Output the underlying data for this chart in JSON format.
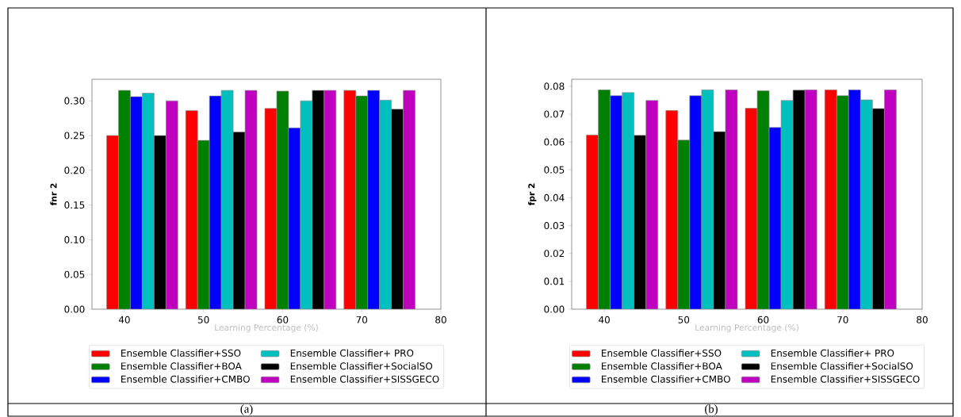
{
  "chart_data": [
    {
      "type": "bar",
      "xlabel": "Learning Percentage (%)",
      "ylabel": "fnr 2",
      "xlim": [
        35.9,
        80
      ],
      "xticks": [
        40,
        50,
        60,
        70,
        80
      ],
      "ylim": [
        0,
        0.331
      ],
      "yticks": [
        {
          "value": 0,
          "label": "0.00"
        },
        {
          "value": 0.05,
          "label": "0.05"
        },
        {
          "value": 0.1,
          "label": "0.10"
        },
        {
          "value": 0.15,
          "label": "0.15"
        },
        {
          "value": 0.2,
          "label": "0.20"
        },
        {
          "value": 0.25,
          "label": "0.25"
        },
        {
          "value": 0.3,
          "label": "0.30"
        }
      ],
      "legend": "bottom",
      "annotations": [
        "(a)"
      ],
      "series": [
        {
          "name": "Ensemble Classifier+SSO",
          "color": "#ff0000",
          "x": [
            38.5,
            48.5,
            58.5,
            68.5
          ],
          "values": [
            0.25,
            0.286,
            0.289,
            0.315
          ]
        },
        {
          "name": "Ensemble Classifier+BOA",
          "color": "#008000",
          "x": [
            40,
            50,
            60,
            70
          ],
          "values": [
            0.315,
            0.243,
            0.314,
            0.307
          ]
        },
        {
          "name": "Ensemble Classifier+CMBO",
          "color": "#0000ff",
          "x": [
            41.5,
            51.5,
            61.5,
            71.5
          ],
          "values": [
            0.306,
            0.307,
            0.261,
            0.315
          ]
        },
        {
          "name": "Ensemble Classifier+ PRO",
          "color": "#00bfbf",
          "x": [
            43,
            53,
            63,
            73
          ],
          "values": [
            0.311,
            0.315,
            0.3,
            0.301
          ]
        },
        {
          "name": "Ensemble Classifier+SocialSO",
          "color": "#000000",
          "x": [
            44.5,
            54.5,
            64.5,
            74.5
          ],
          "values": [
            0.25,
            0.255,
            0.315,
            0.288
          ]
        },
        {
          "name": "Ensemble Classifier+SISSGECO",
          "color": "#bf00bf",
          "x": [
            46,
            56,
            66,
            76
          ],
          "values": [
            0.3,
            0.315,
            0.315,
            0.315
          ]
        }
      ]
    },
    {
      "type": "bar",
      "xlabel": "Learning Percentage (%)",
      "ylabel": "fpr 2",
      "xlim": [
        35.9,
        80
      ],
      "xticks": [
        40,
        50,
        60,
        70,
        80
      ],
      "ylim": [
        0,
        0.0825
      ],
      "yticks": [
        {
          "value": 0,
          "label": "0.00"
        },
        {
          "value": 0.01,
          "label": "0.01"
        },
        {
          "value": 0.02,
          "label": "0.02"
        },
        {
          "value": 0.03,
          "label": "0.03"
        },
        {
          "value": 0.04,
          "label": "0.04"
        },
        {
          "value": 0.05,
          "label": "0.05"
        },
        {
          "value": 0.06,
          "label": "0.06"
        },
        {
          "value": 0.07,
          "label": "0.07"
        },
        {
          "value": 0.08,
          "label": "0.08"
        }
      ],
      "legend": "bottom",
      "annotations": [
        "(b)"
      ],
      "series": [
        {
          "name": "Ensemble Classifier+SSO",
          "color": "#ff0000",
          "x": [
            38.5,
            48.5,
            58.5,
            68.5
          ],
          "values": [
            0.0625,
            0.0713,
            0.0721,
            0.0787
          ]
        },
        {
          "name": "Ensemble Classifier+BOA",
          "color": "#008000",
          "x": [
            40,
            50,
            60,
            70
          ],
          "values": [
            0.0787,
            0.0607,
            0.0784,
            0.0766
          ]
        },
        {
          "name": "Ensemble Classifier+CMBO",
          "color": "#0000ff",
          "x": [
            41.5,
            51.5,
            61.5,
            71.5
          ],
          "values": [
            0.0766,
            0.0766,
            0.0652,
            0.0787
          ]
        },
        {
          "name": "Ensemble Classifier+ PRO",
          "color": "#00bfbf",
          "x": [
            43,
            53,
            63,
            73
          ],
          "values": [
            0.0777,
            0.0787,
            0.0749,
            0.0751
          ]
        },
        {
          "name": "Ensemble Classifier+SocialSO",
          "color": "#000000",
          "x": [
            44.5,
            54.5,
            64.5,
            74.5
          ],
          "values": [
            0.0624,
            0.0637,
            0.0786,
            0.072
          ]
        },
        {
          "name": "Ensemble Classifier+SISSGECO",
          "color": "#bf00bf",
          "x": [
            46,
            56,
            66,
            76
          ],
          "values": [
            0.0749,
            0.0787,
            0.0787,
            0.0787
          ]
        }
      ]
    }
  ]
}
